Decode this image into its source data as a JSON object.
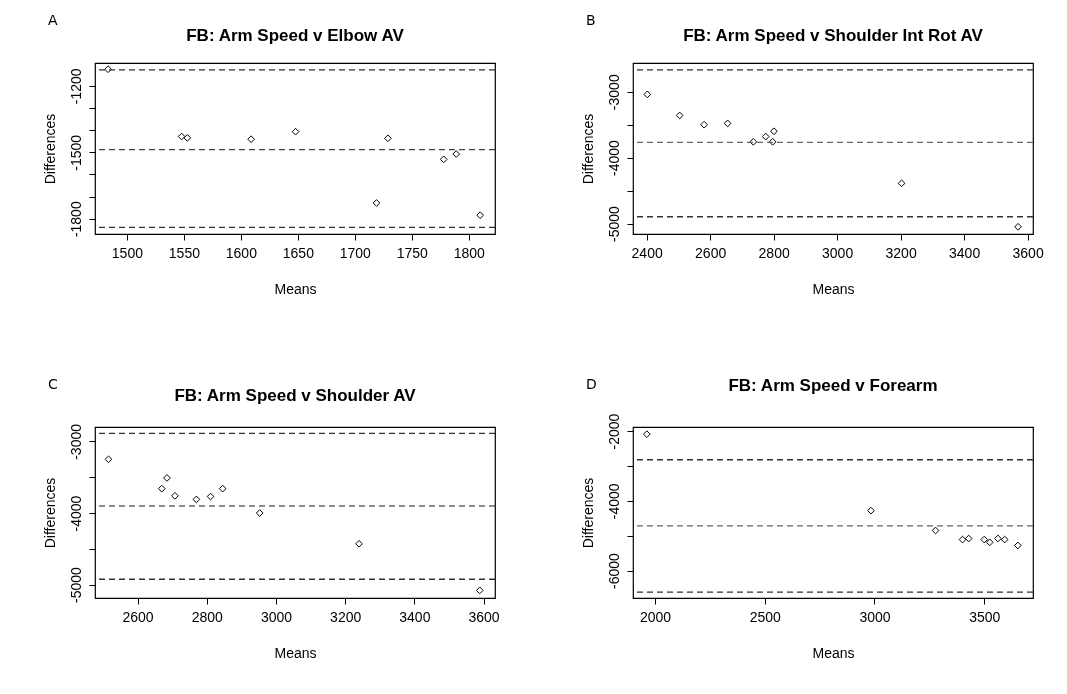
{
  "chart_data": [
    {
      "type": "scatter",
      "title": "FB: Arm Speed v Elbow AV",
      "xlabel": "Means",
      "ylabel": "Differences",
      "annotations": [
        "A"
      ],
      "marker": "diamond",
      "series": [
        {
          "color": "#000000",
          "x": [
            1483.5,
            1548,
            1553,
            1609,
            1648,
            1719,
            1729,
            1778,
            1789,
            1810
          ],
          "values": [
            -1125,
            -1429,
            -1435,
            -1441,
            -1407,
            -1729,
            -1437,
            -1532,
            -1508,
            -1784
          ]
        }
      ],
      "xlim": [
        1472,
        1823
      ],
      "xticks": [
        1500,
        1550,
        1600,
        1650,
        1700,
        1750,
        1800
      ],
      "ylim": [
        -1869,
        -1097
      ],
      "yticks": [
        -1200,
        {
          "value": -1300,
          "label": null
        },
        {
          "value": -1400,
          "label": null
        },
        -1500,
        {
          "value": -1600,
          "label": null
        },
        {
          "value": -1700,
          "label": null
        },
        -1800
      ],
      "ref_lines": [
        {
          "axis": "y",
          "value": -1128,
          "color": "#333333",
          "line_style": "dashed"
        },
        {
          "axis": "y",
          "value": -1488,
          "color": "#444444",
          "line_style": "dashed"
        },
        {
          "axis": "y",
          "value": -1839,
          "color": "#333333",
          "line_style": "dashed"
        }
      ]
    },
    {
      "type": "scatter",
      "title": "FB: Arm Speed v Shoulder Int Rot AV",
      "xlabel": "Means",
      "ylabel": "Differences",
      "annotations": [
        "B"
      ],
      "marker": "diamond",
      "series": [
        {
          "color": "#000000",
          "x": [
            2402,
            2504,
            2581,
            2655,
            2736,
            2775,
            2797,
            2801,
            3203,
            3570
          ],
          "values": [
            -3040,
            -3360,
            -3500,
            -3480,
            -3760,
            -3680,
            -3760,
            -3600,
            -4390,
            -5050
          ]
        }
      ],
      "xlim": [
        2357,
        3617
      ],
      "xticks": [
        2400,
        2600,
        2800,
        3000,
        3200,
        3400,
        3600
      ],
      "ylim": [
        -5159,
        -2564
      ],
      "yticks": [
        -3000,
        {
          "value": -3500,
          "label": null
        },
        -4000,
        {
          "value": -4500,
          "label": null
        },
        -5000
      ],
      "ref_lines": [
        {
          "axis": "y",
          "value": -2667,
          "color": "#333333",
          "line_style": "dashed"
        },
        {
          "axis": "y",
          "value": -3770,
          "color": "#666666",
          "line_style": "dashed"
        },
        {
          "axis": "y",
          "value": -4897,
          "color": "#333333",
          "line_style": "dashed"
        }
      ]
    },
    {
      "type": "scatter",
      "title": "FB: Arm Speed v Shoulder AV",
      "xlabel": "Means",
      "ylabel": "Differences",
      "annotations": [
        "C"
      ],
      "marker": "diamond",
      "series": [
        {
          "color": "#000000",
          "x": [
            2516,
            2670,
            2685,
            2708,
            2770,
            2811,
            2846,
            2953,
            3240,
            3589
          ],
          "values": [
            -3250,
            -3660,
            -3510,
            -3760,
            -3810,
            -3770,
            -3660,
            -4000,
            -4430,
            -5080
          ]
        }
      ],
      "xlim": [
        2477,
        3633
      ],
      "xticks": [
        2600,
        2800,
        3000,
        3200,
        3400,
        3600
      ],
      "ylim": [
        -5187,
        -2799
      ],
      "yticks": [
        -3000,
        {
          "value": -3500,
          "label": null
        },
        -4000,
        {
          "value": -4500,
          "label": null
        },
        -5000
      ],
      "ref_lines": [
        {
          "axis": "y",
          "value": -2888,
          "color": "#333333",
          "line_style": "dashed"
        },
        {
          "axis": "y",
          "value": -3902,
          "color": "#666666",
          "line_style": "dashed"
        },
        {
          "axis": "y",
          "value": -4925,
          "color": "#333333",
          "line_style": "dashed"
        }
      ]
    },
    {
      "type": "scatter",
      "title": "FB: Arm Speed v Forearm",
      "xlabel": "Means",
      "ylabel": "Differences",
      "annotations": [
        "D"
      ],
      "marker": "diamond",
      "series": [
        {
          "color": "#000000",
          "x": [
            1963,
            2984,
            3278,
            3401,
            3429,
            3500,
            3525,
            3562,
            3593,
            3653
          ],
          "values": [
            -2090,
            -4280,
            -4850,
            -5110,
            -5080,
            -5110,
            -5190,
            -5080,
            -5110,
            -5280
          ]
        }
      ],
      "xlim": [
        1900,
        3722
      ],
      "xticks": [
        2000,
        2500,
        3000,
        3500
      ],
      "ylim": [
        -6785,
        -1884
      ],
      "yticks": [
        -2000,
        {
          "value": -3000,
          "label": null
        },
        -4000,
        {
          "value": -5000,
          "label": null
        },
        -6000
      ],
      "ref_lines": [
        {
          "axis": "y",
          "value": -2823,
          "color": "#333333",
          "line_style": "dashed"
        },
        {
          "axis": "y",
          "value": -4717,
          "color": "#666666",
          "line_style": "dashed"
        },
        {
          "axis": "y",
          "value": -6615,
          "color": "#333333",
          "line_style": "dashed"
        }
      ]
    }
  ]
}
